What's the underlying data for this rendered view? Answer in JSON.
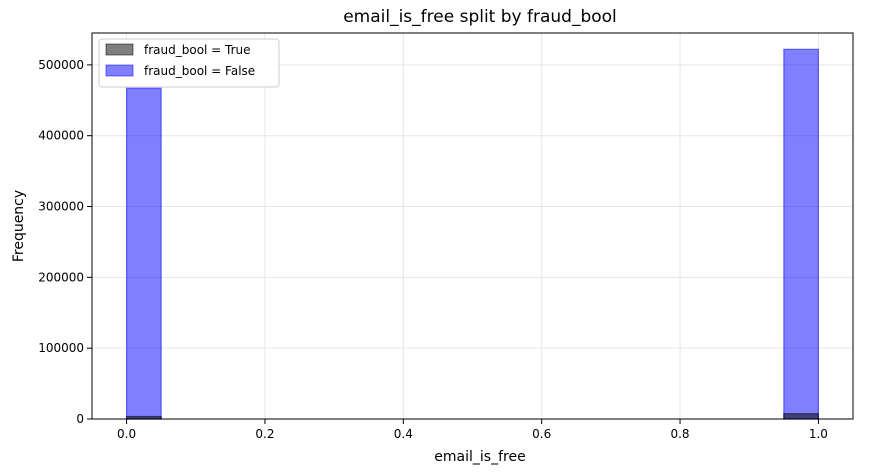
{
  "chart_data": {
    "type": "bar",
    "title": "email_is_free split by fraud_bool",
    "xlabel": "email_is_free",
    "ylabel": "Frequency",
    "xlim": [
      -0.05,
      1.05
    ],
    "ylim": [
      0,
      545000
    ],
    "xticks": [
      0.0,
      0.2,
      0.4,
      0.6,
      0.8,
      1.0
    ],
    "xtick_labels": [
      "0.0",
      "0.2",
      "0.4",
      "0.6",
      "0.8",
      "1.0"
    ],
    "yticks": [
      0,
      100000,
      200000,
      300000,
      400000,
      500000
    ],
    "ytick_labels": [
      "0",
      "100000",
      "200000",
      "300000",
      "400000",
      "500000"
    ],
    "grid": true,
    "legend_position": "top-left",
    "bin_width": 0.05,
    "series": [
      {
        "name": "fraud_bool = True",
        "color": "#000000",
        "alpha": 0.5,
        "bins": [
          {
            "x0": 0.0,
            "x1": 0.05,
            "value": 3500
          },
          {
            "x0": 0.95,
            "x1": 1.0,
            "value": 7500
          }
        ]
      },
      {
        "name": "fraud_bool = False",
        "color": "#0000ff",
        "alpha": 0.5,
        "bins": [
          {
            "x0": 0.0,
            "x1": 0.05,
            "value": 467000
          },
          {
            "x0": 0.95,
            "x1": 1.0,
            "value": 522000
          }
        ]
      }
    ]
  }
}
